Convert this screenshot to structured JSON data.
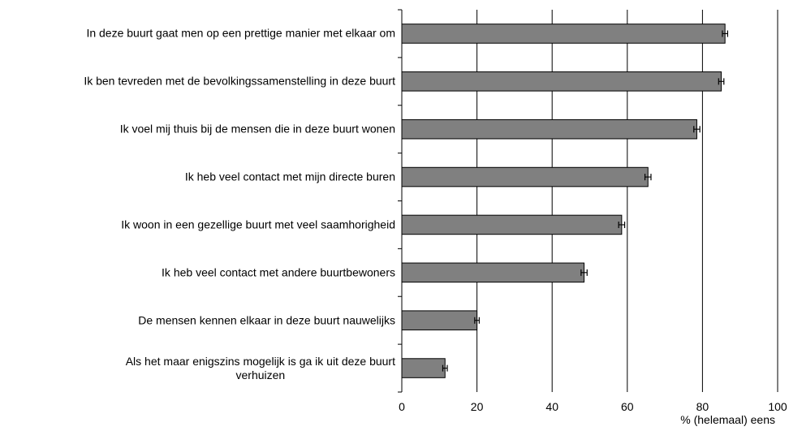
{
  "chart_data": {
    "type": "hbar",
    "categories": [
      "In deze buurt gaat men op een prettige manier met elkaar om",
      "Ik ben tevreden met de bevolkingssamenstelling in deze buurt",
      "Ik voel mij thuis bij de mensen die in deze buurt wonen",
      "Ik heb veel contact met mijn directe buren",
      "Ik woon in een gezellige buurt met veel saamhorigheid",
      "Ik heb veel contact met andere buurtbewoners",
      "De mensen kennen elkaar in deze buurt nauwelijks",
      "Als het maar enigszins mogelijk is ga ik uit deze buurt\nverhuizen"
    ],
    "values": [
      86,
      85,
      78.5,
      65.5,
      58.5,
      48.5,
      20,
      11.5
    ],
    "errors": [
      0.7,
      0.7,
      0.8,
      0.8,
      0.8,
      0.8,
      0.6,
      0.6
    ],
    "color": "#808080",
    "xlabel": "% (helemaal) eens",
    "xlim": [
      0,
      100
    ],
    "xticks": [
      0,
      20,
      40,
      60,
      80,
      100
    ],
    "grid": true
  }
}
